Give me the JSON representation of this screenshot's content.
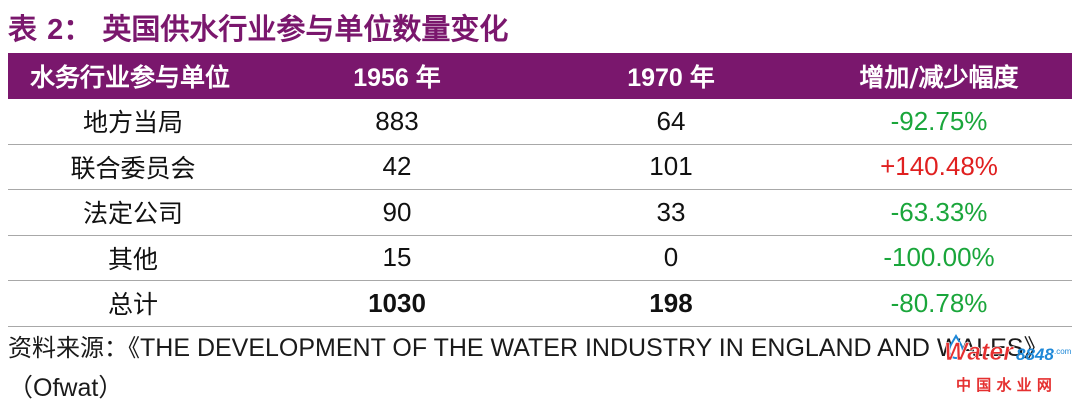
{
  "title": {
    "prefix": "表 ",
    "number": "2",
    "text": "： 英国供水行业参与单位数量变化"
  },
  "table": {
    "headers": [
      "水务行业参与单位",
      "1956 年",
      "1970 年",
      "增加/减少幅度"
    ],
    "rows": [
      {
        "name": "地方当局",
        "y1956": "883",
        "y1970": "64",
        "change": "-92.75%",
        "trend": "decrease"
      },
      {
        "name": "联合委员会",
        "y1956": "42",
        "y1970": "101",
        "change": "+140.48%",
        "trend": "increase"
      },
      {
        "name": "法定公司",
        "y1956": "90",
        "y1970": "33",
        "change": "-63.33%",
        "trend": "decrease"
      },
      {
        "name": "其他",
        "y1956": "15",
        "y1970": "0",
        "change": "-100.00%",
        "trend": "decrease"
      },
      {
        "name": "总计",
        "y1956": "1030",
        "y1970": "198",
        "change": "-80.78%",
        "trend": "decrease"
      }
    ]
  },
  "source": {
    "label": "资料来源：",
    "open": "《",
    "title": "THE DEVELOPMENT OF THE WATER INDUSTRY IN ENGLAND AND WALES",
    "close": "》",
    "publisher": "（Ofwat）"
  },
  "watermark": {
    "brand": "Water",
    "brand_num": "8848",
    "brand_suffix": ".com",
    "subtitle": "中 国 水 业 网"
  },
  "colors": {
    "title": "#7a176d",
    "header_bg": "#7a176d",
    "decrease": "#1aa63b",
    "increase": "#e02020"
  }
}
